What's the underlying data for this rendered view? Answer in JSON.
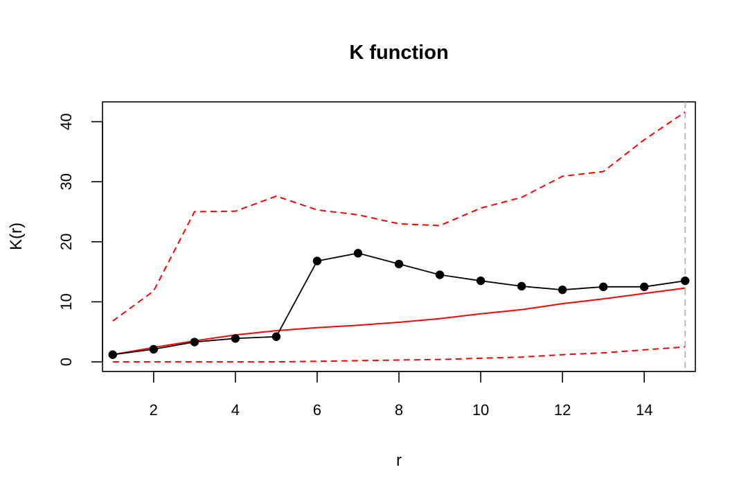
{
  "chart_data": {
    "type": "line",
    "title": "K function",
    "xlabel": "r",
    "ylabel": "K(r)",
    "xlim": [
      0.75,
      15.25
    ],
    "ylim": [
      -1.6,
      43.3
    ],
    "x_ticks": [
      2,
      4,
      6,
      8,
      10,
      12,
      14
    ],
    "y_ticks": [
      0,
      10,
      20,
      30,
      40
    ],
    "grid": false,
    "legend": "none",
    "x": [
      1,
      2,
      3,
      4,
      5,
      6,
      7,
      8,
      9,
      10,
      11,
      12,
      13,
      14,
      15
    ],
    "series": [
      {
        "role": "observed",
        "style": "solid-points",
        "color": "#000000",
        "values": [
          1.2,
          2.1,
          3.3,
          3.9,
          4.2,
          16.8,
          18.1,
          16.3,
          14.5,
          13.5,
          12.6,
          12.0,
          12.5,
          12.5,
          13.5
        ]
      },
      {
        "role": "theoretical",
        "style": "solid",
        "color": "#ff0000",
        "values": [
          1.2,
          2.4,
          3.5,
          4.5,
          5.2,
          5.7,
          6.1,
          6.6,
          7.2,
          8.0,
          8.7,
          9.7,
          10.5,
          11.4,
          12.3
        ]
      },
      {
        "role": "upper-envelope",
        "style": "dashed",
        "color": "#ff0000",
        "values": [
          6.8,
          11.8,
          25.0,
          25.1,
          27.6,
          25.3,
          24.5,
          23.0,
          22.7,
          25.6,
          27.4,
          30.9,
          31.7,
          37.0,
          41.6
        ]
      },
      {
        "role": "lower-envelope",
        "style": "dashed",
        "color": "#ff0000",
        "values": [
          0.0,
          0.0,
          0.0,
          0.0,
          0.0,
          0.1,
          0.2,
          0.3,
          0.4,
          0.6,
          0.8,
          1.2,
          1.5,
          2.0,
          2.5
        ]
      }
    ],
    "reference_line": {
      "orientation": "vertical",
      "x": 15,
      "style": "dashed",
      "color": "#b3b3b3"
    }
  }
}
